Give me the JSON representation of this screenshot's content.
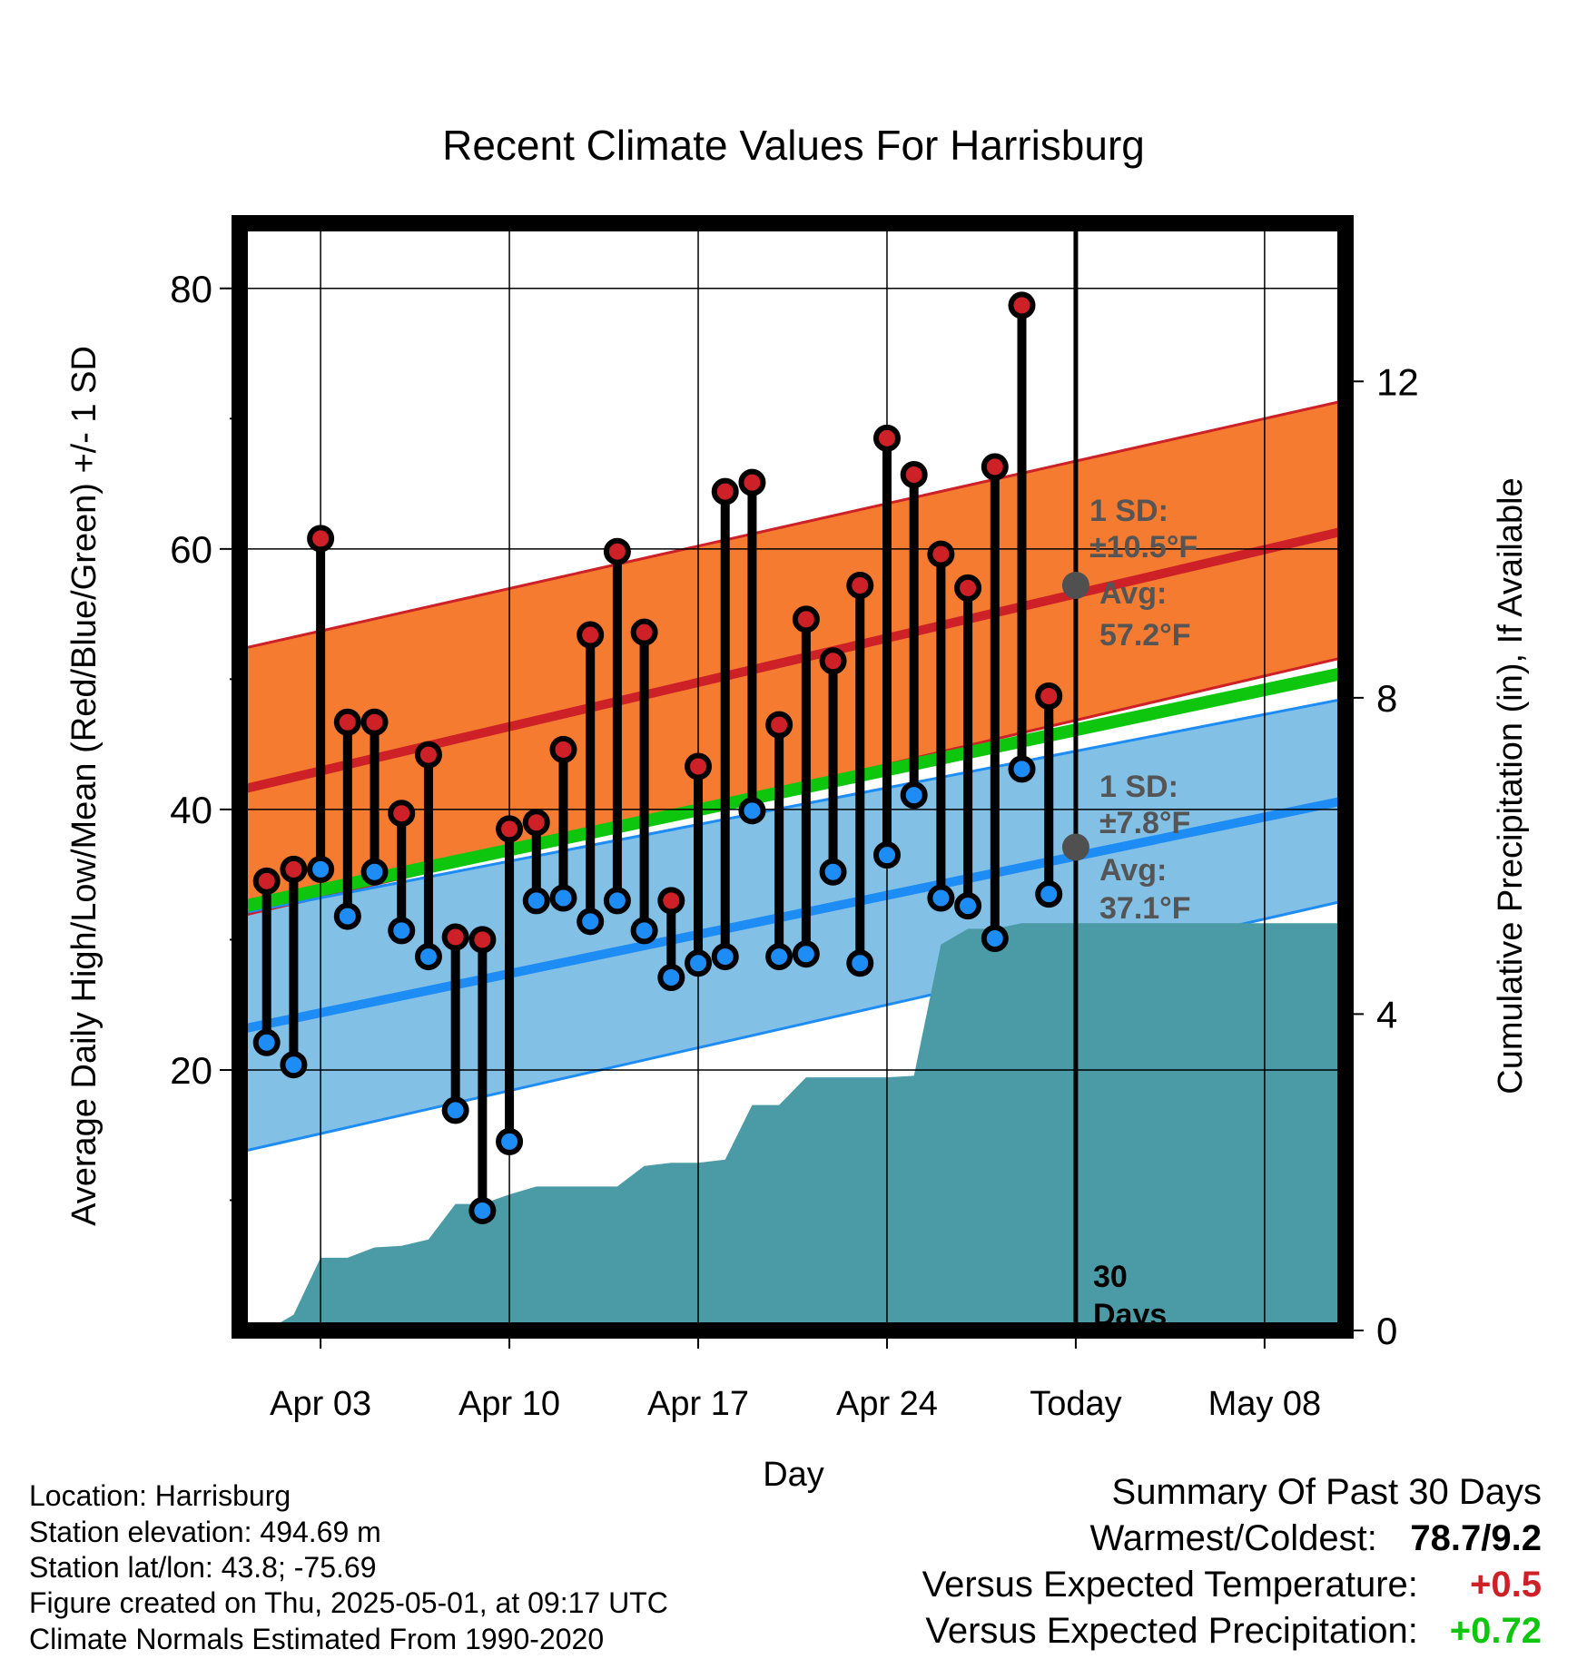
{
  "chart_data": {
    "type": "line",
    "title": "Recent Climate Values For Harrisburg",
    "xlabel": "Day",
    "ylabel": "Average Daily High/Low/Mean (Red/Blue/Green) +/- 1 SD",
    "y2label": "Cumulative Precipitation (in), If Available",
    "ylim": [
      0,
      85
    ],
    "y2lim": [
      0,
      14
    ],
    "yticks": [
      "20",
      "40",
      "60",
      "80"
    ],
    "y2ticks": [
      "0",
      "4",
      "8",
      "12"
    ],
    "x_range": [
      "2025-03-31",
      "2025-05-11"
    ],
    "xticks": [
      {
        "date": "2025-04-03",
        "label": "Apr 03"
      },
      {
        "date": "2025-04-10",
        "label": "Apr 10"
      },
      {
        "date": "2025-04-17",
        "label": "Apr 17"
      },
      {
        "date": "2025-04-24",
        "label": "Apr 24"
      },
      {
        "date": "2025-05-01",
        "label": "Today"
      },
      {
        "date": "2025-05-08",
        "label": "May 08"
      }
    ],
    "today": "2025-05-01",
    "today_label_line1": "30",
    "today_label_line2": "Days",
    "normals": {
      "dates": [
        "2025-03-31",
        "2025-05-11"
      ],
      "high_avg": [
        41.5,
        61.4
      ],
      "high_sd_upper": [
        52.3,
        71.4
      ],
      "high_sd_lower": [
        31.8,
        51.7
      ],
      "mean": [
        32.5,
        50.5
      ],
      "low_avg": [
        23.1,
        40.7
      ],
      "low_sd_upper": [
        32.0,
        48.5
      ],
      "low_sd_lower": [
        13.7,
        33.0
      ]
    },
    "high_annotation": {
      "sd_label": "1 SD:",
      "sd_value": "±10.5°F",
      "avg_label": "Avg:",
      "avg_value": "57.2°F",
      "avg": 57.2
    },
    "low_annotation": {
      "sd_label": "1 SD:",
      "sd_value": "±7.8°F",
      "avg_label": "Avg:",
      "avg_value": "37.1°F",
      "avg": 37.1
    },
    "observations": [
      {
        "date": "2025-04-01",
        "high": 34.5,
        "low": 22.1
      },
      {
        "date": "2025-04-02",
        "high": 35.4,
        "low": 20.4
      },
      {
        "date": "2025-04-03",
        "high": 60.8,
        "low": 35.4
      },
      {
        "date": "2025-04-04",
        "high": 46.7,
        "low": 31.8
      },
      {
        "date": "2025-04-05",
        "high": 46.7,
        "low": 35.2
      },
      {
        "date": "2025-04-06",
        "high": 39.7,
        "low": 30.7
      },
      {
        "date": "2025-04-07",
        "high": 44.2,
        "low": 28.7
      },
      {
        "date": "2025-04-08",
        "high": 30.2,
        "low": 16.9
      },
      {
        "date": "2025-04-09",
        "high": 30.0,
        "low": 9.2
      },
      {
        "date": "2025-04-10",
        "high": 38.5,
        "low": 14.5
      },
      {
        "date": "2025-04-11",
        "high": 39.0,
        "low": 33.0
      },
      {
        "date": "2025-04-12",
        "high": 44.6,
        "low": 33.2
      },
      {
        "date": "2025-04-13",
        "high": 53.4,
        "low": 31.4
      },
      {
        "date": "2025-04-14",
        "high": 59.8,
        "low": 33.0
      },
      {
        "date": "2025-04-15",
        "high": 53.6,
        "low": 30.7
      },
      {
        "date": "2025-04-16",
        "high": 33.0,
        "low": 27.1
      },
      {
        "date": "2025-04-17",
        "high": 43.3,
        "low": 28.2
      },
      {
        "date": "2025-04-18",
        "high": 64.4,
        "low": 28.7
      },
      {
        "date": "2025-04-19",
        "high": 65.1,
        "low": 39.9
      },
      {
        "date": "2025-04-20",
        "high": 46.5,
        "low": 28.7
      },
      {
        "date": "2025-04-21",
        "high": 54.6,
        "low": 28.9
      },
      {
        "date": "2025-04-22",
        "high": 51.4,
        "low": 35.2
      },
      {
        "date": "2025-04-23",
        "high": 57.2,
        "low": 28.2
      },
      {
        "date": "2025-04-24",
        "high": 68.5,
        "low": 36.5
      },
      {
        "date": "2025-04-25",
        "high": 65.7,
        "low": 41.1
      },
      {
        "date": "2025-04-26",
        "high": 59.6,
        "low": 33.2
      },
      {
        "date": "2025-04-27",
        "high": 57.0,
        "low": 32.6
      },
      {
        "date": "2025-04-28",
        "high": 66.3,
        "low": 30.1
      },
      {
        "date": "2025-04-29",
        "high": 78.7,
        "low": 43.1
      },
      {
        "date": "2025-04-30",
        "high": 48.7,
        "low": 33.5
      }
    ],
    "precipitation": {
      "dates": [
        "2025-03-31",
        "2025-04-01",
        "2025-04-02",
        "2025-04-03",
        "2025-04-04",
        "2025-04-05",
        "2025-04-06",
        "2025-04-07",
        "2025-04-08",
        "2025-04-09",
        "2025-04-10",
        "2025-04-11",
        "2025-04-12",
        "2025-04-13",
        "2025-04-14",
        "2025-04-15",
        "2025-04-16",
        "2025-04-17",
        "2025-04-18",
        "2025-04-19",
        "2025-04-20",
        "2025-04-21",
        "2025-04-22",
        "2025-04-23",
        "2025-04-24",
        "2025-04-25",
        "2025-04-26",
        "2025-04-27",
        "2025-04-28",
        "2025-04-29",
        "2025-04-30",
        "2025-05-01",
        "2025-05-11"
      ],
      "cumulative_in": [
        0.0,
        0.0,
        0.2,
        0.92,
        0.92,
        1.05,
        1.07,
        1.15,
        1.6,
        1.6,
        1.72,
        1.82,
        1.82,
        1.82,
        1.82,
        2.08,
        2.12,
        2.12,
        2.16,
        2.85,
        2.85,
        3.2,
        3.2,
        3.2,
        3.2,
        3.22,
        4.88,
        5.08,
        5.08,
        5.15,
        5.15,
        5.15,
        5.15
      ]
    },
    "colors": {
      "high_band": "#f47b30",
      "high_line": "#cd2027",
      "low_band": "#82c0e6",
      "low_line": "#1e8cf5",
      "mean_line": "#0ec60e",
      "precip": "#4a9ba6",
      "high_marker": "#cd2027",
      "low_marker": "#1e8cf5",
      "annotation": "#555555"
    }
  },
  "footer": {
    "location": "Location: Harrisburg",
    "elevation": "Station elevation: 494.69 m",
    "latlon": "Station lat/lon: 43.8; -75.69",
    "created": "Figure created on Thu, 2025-05-01, at 09:17 UTC",
    "normals": "Climate Normals Estimated From 1990-2020"
  },
  "summary": {
    "title": "Summary Of Past 30 Days",
    "warm_cold_label": "Warmest/Coldest:",
    "warm_cold_value": "78.7/9.2",
    "temp_label": "Versus Expected Temperature:",
    "temp_value": "+0.5",
    "temp_color": "#cd2027",
    "precip_label": "Versus Expected Precipitation:",
    "precip_value": "+0.72",
    "precip_color": "#0ec60e"
  }
}
